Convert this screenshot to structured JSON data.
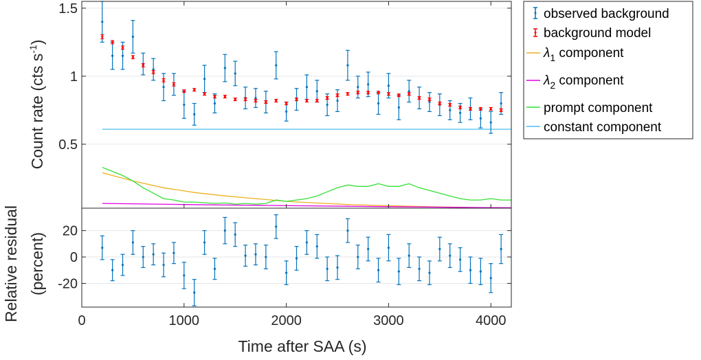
{
  "chart_data": {
    "type": "line",
    "xlabel": "Time after SAA (s)",
    "xlim": [
      0,
      4200
    ],
    "xticks": [
      0,
      1000,
      2000,
      3000,
      4000
    ],
    "top_panel": {
      "ylabel": "Count rate (cts s",
      "ylabel_sup": "-1",
      "ylabel_close": ")",
      "ylim": [
        0.03,
        1.55
      ],
      "yticks": [
        0.5,
        1,
        1.5
      ],
      "ytick_labels": [
        "0.5",
        "1",
        "1.5"
      ],
      "x": [
        200,
        300,
        400,
        500,
        600,
        700,
        800,
        900,
        1000,
        1100,
        1200,
        1300,
        1400,
        1500,
        1600,
        1700,
        1800,
        1900,
        2000,
        2100,
        2200,
        2300,
        2400,
        2500,
        2600,
        2700,
        2800,
        2900,
        3000,
        3100,
        3200,
        3300,
        3400,
        3500,
        3600,
        3700,
        3800,
        3900,
        4000,
        4100
      ],
      "observed": [
        1.4,
        1.15,
        1.15,
        1.29,
        1.09,
        1.05,
        0.92,
        0.94,
        0.79,
        0.72,
        0.98,
        0.8,
        1.06,
        1.02,
        0.84,
        0.84,
        0.81,
        1.08,
        0.74,
        0.83,
        0.92,
        0.89,
        0.79,
        0.82,
        1.08,
        0.92,
        0.94,
        0.8,
        0.93,
        0.77,
        0.89,
        0.84,
        0.81,
        0.79,
        0.75,
        0.73,
        0.76,
        0.69,
        0.66,
        0.8
      ],
      "observed_err": [
        0.15,
        0.1,
        0.1,
        0.12,
        0.08,
        0.08,
        0.1,
        0.08,
        0.1,
        0.08,
        0.1,
        0.07,
        0.1,
        0.09,
        0.08,
        0.07,
        0.08,
        0.1,
        0.07,
        0.08,
        0.09,
        0.08,
        0.08,
        0.08,
        0.11,
        0.08,
        0.09,
        0.08,
        0.09,
        0.09,
        0.08,
        0.08,
        0.07,
        0.08,
        0.07,
        0.07,
        0.08,
        0.07,
        0.08,
        0.08
      ],
      "model": [
        1.29,
        1.25,
        1.21,
        1.14,
        1.08,
        1.03,
        0.97,
        0.94,
        0.89,
        0.9,
        0.87,
        0.85,
        0.85,
        0.83,
        0.83,
        0.82,
        0.81,
        0.82,
        0.8,
        0.83,
        0.82,
        0.82,
        0.84,
        0.86,
        0.87,
        0.88,
        0.88,
        0.88,
        0.87,
        0.86,
        0.87,
        0.84,
        0.83,
        0.8,
        0.79,
        0.77,
        0.76,
        0.76,
        0.76,
        0.75
      ],
      "model_err": [
        0.015,
        0.012,
        0.012,
        0.012,
        0.012,
        0.012,
        0.012,
        0.012,
        0.01,
        0.01,
        0.01,
        0.01,
        0.01,
        0.01,
        0.01,
        0.01,
        0.01,
        0.01,
        0.01,
        0.01,
        0.01,
        0.01,
        0.01,
        0.01,
        0.01,
        0.01,
        0.01,
        0.01,
        0.01,
        0.01,
        0.01,
        0.01,
        0.01,
        0.01,
        0.01,
        0.01,
        0.01,
        0.01,
        0.01,
        0.01
      ],
      "components": [
        {
          "name": "lambda1",
          "color": "#EDB120",
          "x": [
            200,
            500,
            800,
            1100,
            1400,
            1700,
            2000,
            2300,
            2600,
            2900,
            3200,
            3500,
            3800,
            4200
          ],
          "y": [
            0.29,
            0.23,
            0.18,
            0.145,
            0.12,
            0.1,
            0.08,
            0.068,
            0.057,
            0.05,
            0.044,
            0.039,
            0.035,
            0.032
          ]
        },
        {
          "name": "lambda2",
          "color": "#E000E0",
          "x": [
            200,
            600,
            1000,
            1400,
            1800,
            2200,
            2600,
            3000,
            3400,
            3800,
            4200
          ],
          "y": [
            0.065,
            0.061,
            0.057,
            0.053,
            0.05,
            0.047,
            0.044,
            0.041,
            0.038,
            0.035,
            0.033
          ]
        },
        {
          "name": "prompt",
          "color": "#33E033",
          "x": [
            200,
            300,
            400,
            500,
            600,
            700,
            800,
            900,
            1000,
            1100,
            1200,
            1300,
            1400,
            1500,
            1600,
            1700,
            1800,
            1900,
            2000,
            2100,
            2200,
            2300,
            2400,
            2500,
            2600,
            2700,
            2800,
            2900,
            3000,
            3100,
            3200,
            3300,
            3400,
            3500,
            3600,
            3700,
            3800,
            3900,
            4000,
            4100,
            4200
          ],
          "y": [
            0.33,
            0.3,
            0.27,
            0.23,
            0.18,
            0.14,
            0.1,
            0.09,
            0.075,
            0.075,
            0.07,
            0.065,
            0.068,
            0.06,
            0.065,
            0.06,
            0.065,
            0.09,
            0.08,
            0.09,
            0.1,
            0.12,
            0.15,
            0.18,
            0.2,
            0.19,
            0.19,
            0.21,
            0.19,
            0.19,
            0.21,
            0.18,
            0.16,
            0.14,
            0.12,
            0.1,
            0.09,
            0.09,
            0.1,
            0.09,
            0.09
          ]
        },
        {
          "name": "constant",
          "color": "#4DBEEE",
          "x": [
            200,
            4200
          ],
          "y": [
            0.61,
            0.61
          ]
        }
      ]
    },
    "bottom_panel": {
      "ylabel_line1": "Relative residual",
      "ylabel_line2": "(percent)",
      "ylim": [
        -38,
        37
      ],
      "yticks": [
        -20,
        0,
        20
      ],
      "ytick_labels": [
        "-20",
        "0",
        "20"
      ],
      "x": [
        200,
        300,
        400,
        500,
        600,
        700,
        800,
        900,
        1000,
        1100,
        1200,
        1300,
        1400,
        1500,
        1600,
        1700,
        1800,
        1900,
        2000,
        2100,
        2200,
        2300,
        2400,
        2500,
        2600,
        2700,
        2800,
        2900,
        3000,
        3100,
        3200,
        3300,
        3400,
        3500,
        3600,
        3700,
        3800,
        3900,
        4000,
        4100
      ],
      "residual": [
        7,
        -10,
        -6,
        11,
        0,
        2,
        -6,
        3,
        -14,
        -27,
        11,
        -9,
        20,
        17,
        1,
        2,
        0,
        23,
        -12,
        -1,
        11,
        8,
        -9,
        -8,
        20,
        0,
        6,
        -10,
        7,
        -11,
        1,
        -9,
        -12,
        6,
        1,
        -2,
        -10,
        -11,
        -16,
        6
      ],
      "residual_err": [
        9,
        8,
        8,
        9,
        8,
        8,
        9,
        8,
        10,
        10,
        9,
        8,
        10,
        9,
        8,
        8,
        9,
        9,
        9,
        9,
        9,
        9,
        9,
        9,
        9,
        9,
        9,
        9,
        10,
        10,
        9,
        9,
        9,
        9,
        9,
        9,
        10,
        10,
        11,
        11
      ]
    },
    "legend": {
      "placement": "top-right outside",
      "entries": [
        {
          "label": "observed background",
          "color": "#0072BD",
          "style": "errorbar"
        },
        {
          "label": "background model",
          "color": "#FF0000",
          "style": "errorbar"
        },
        {
          "label_main": "λ",
          "label_sub": "1",
          "label_rest": " component",
          "color": "#EDB120",
          "style": "line"
        },
        {
          "label_main": "λ",
          "label_sub": "2",
          "label_rest": " component",
          "color": "#E000E0",
          "style": "line"
        },
        {
          "label": "prompt component",
          "color": "#33E033",
          "style": "line"
        },
        {
          "label": "constant component",
          "color": "#4DBEEE",
          "style": "line"
        }
      ]
    }
  }
}
